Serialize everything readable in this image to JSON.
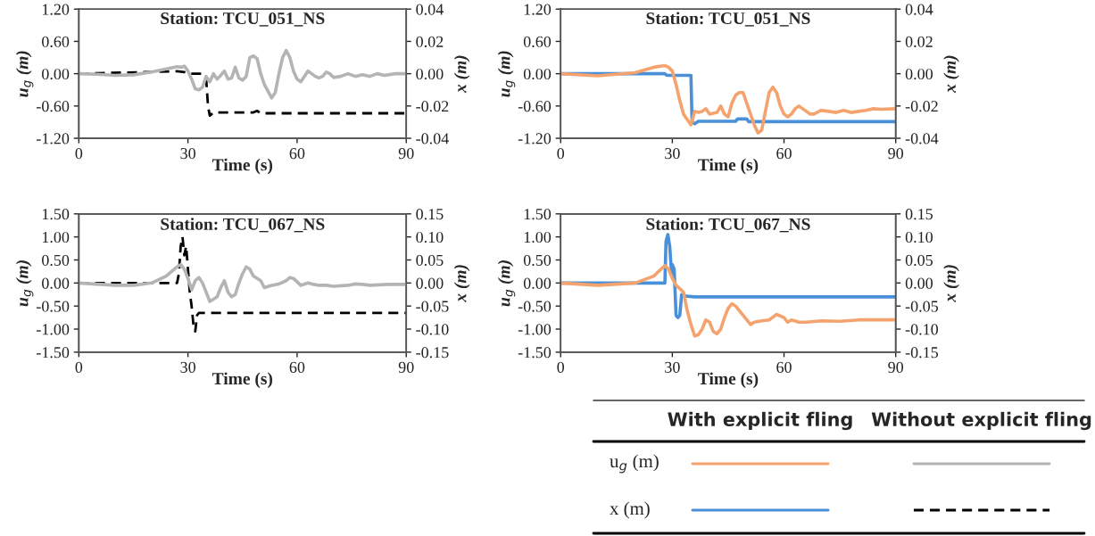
{
  "chart_data": [
    {
      "type": "line",
      "title": "Station: TCU_051_NS",
      "xlabel": "Time (s)",
      "ylabel": "u$_{g}$ (m)",
      "y2label": "x (m)",
      "xlim": [
        0,
        90
      ],
      "xticks": [
        0,
        30,
        60,
        90
      ],
      "ylim": [
        -1.2,
        1.2
      ],
      "yticks": [
        {
          "value": -1.2,
          "label": "-1.20"
        },
        {
          "value": -0.6,
          "label": "-0.60"
        },
        {
          "value": 0,
          "label": "0.00"
        },
        {
          "value": 0.6,
          "label": "0.60"
        },
        {
          "value": 1.2,
          "label": "1.20"
        }
      ],
      "y2lim": [
        -0.04,
        0.04
      ],
      "y2ticks": [
        {
          "value": -0.04,
          "label": "-0.04"
        },
        {
          "value": -0.02,
          "label": "-0.02"
        },
        {
          "value": 0,
          "label": "0.00"
        },
        {
          "value": 0.02,
          "label": "0.02"
        },
        {
          "value": 0.04,
          "label": "0.04"
        }
      ],
      "grid": false,
      "series": [
        {
          "color": "#b4b4b4",
          "line_style": "solid",
          "x": [
            0,
            5,
            10,
            15,
            20,
            25,
            27,
            28,
            29,
            30,
            31,
            32,
            33,
            34,
            35,
            36,
            37,
            38,
            39,
            40,
            41,
            42,
            43,
            44,
            45,
            46,
            47,
            48,
            49,
            50,
            51,
            53,
            54,
            55,
            56,
            57,
            58,
            59,
            60,
            61,
            62,
            63,
            64,
            65,
            66,
            67,
            68,
            69,
            70,
            72,
            74,
            76,
            78,
            80,
            82,
            84,
            87,
            90
          ],
          "values": [
            0,
            -0.01,
            -0.03,
            -0.02,
            0.03,
            0.1,
            0.13,
            0.12,
            0.14,
            0.05,
            -0.1,
            -0.28,
            -0.3,
            -0.25,
            -0.05,
            -0.15,
            0.0,
            -0.1,
            -0.03,
            0.05,
            -0.1,
            -0.08,
            0.12,
            -0.08,
            -0.12,
            -0.05,
            0.3,
            0.33,
            0.28,
            0.0,
            -0.2,
            -0.45,
            -0.35,
            0.0,
            0.3,
            0.43,
            0.3,
            0.05,
            -0.1,
            -0.15,
            -0.05,
            0.05,
            0.0,
            -0.05,
            -0.08,
            -0.05,
            0.03,
            0.0,
            -0.07,
            -0.05,
            0.0,
            -0.05,
            -0.02,
            -0.05,
            0.0,
            -0.03,
            0.0,
            0.0
          ]
        },
        {
          "color": "#000000",
          "line_style": "dashed",
          "axis": "y2",
          "x": [
            0,
            27,
            29,
            30,
            34,
            35,
            35.5,
            36,
            37,
            48,
            49,
            50,
            90
          ],
          "values": [
            0,
            0.0015,
            0.001,
            0,
            0,
            -0.003,
            -0.02,
            -0.026,
            -0.024,
            -0.024,
            -0.023,
            -0.0245,
            -0.0245
          ]
        }
      ]
    },
    {
      "type": "line",
      "title": "Station: TCU_051_NS",
      "xlabel": "Time (s)",
      "ylabel": "u$_{g}$ (m)",
      "y2label": "x (m)",
      "xlim": [
        0,
        90
      ],
      "xticks": [
        0,
        30,
        60,
        90
      ],
      "ylim": [
        -1.2,
        1.2
      ],
      "yticks": [
        {
          "value": -1.2,
          "label": "-1.20"
        },
        {
          "value": -0.6,
          "label": "-0.60"
        },
        {
          "value": 0,
          "label": "0.00"
        },
        {
          "value": 0.6,
          "label": "0.60"
        },
        {
          "value": 1.2,
          "label": "1.20"
        }
      ],
      "y2lim": [
        -0.04,
        0.04
      ],
      "y2ticks": [
        {
          "value": -0.04,
          "label": "-0.04"
        },
        {
          "value": -0.02,
          "label": "-0.02"
        },
        {
          "value": 0,
          "label": "0.00"
        },
        {
          "value": 0.02,
          "label": "0.02"
        },
        {
          "value": 0.04,
          "label": "0.04"
        }
      ],
      "grid": false,
      "series": [
        {
          "color": "#f4a36e",
          "line_style": "solid",
          "x": [
            0,
            10,
            20,
            25,
            28,
            29,
            30,
            31,
            32,
            33,
            34,
            35,
            36,
            37,
            38,
            39,
            40,
            42,
            43,
            44,
            45,
            46,
            47,
            48,
            49,
            50,
            52,
            53,
            54,
            55,
            56,
            57,
            58,
            59,
            60,
            61,
            62,
            63,
            64,
            65,
            66,
            67,
            68,
            70,
            72,
            74,
            76,
            78,
            80,
            82,
            84,
            86,
            90
          ],
          "values": [
            0,
            -0.04,
            0.02,
            0.12,
            0.15,
            0.12,
            0.05,
            -0.2,
            -0.5,
            -0.75,
            -0.85,
            -0.95,
            -0.7,
            -0.72,
            -0.7,
            -0.65,
            -0.75,
            -0.72,
            -0.6,
            -0.75,
            -0.8,
            -0.55,
            -0.4,
            -0.35,
            -0.35,
            -0.55,
            -0.95,
            -1.1,
            -1.05,
            -0.7,
            -0.35,
            -0.25,
            -0.35,
            -0.6,
            -0.75,
            -0.8,
            -0.75,
            -0.65,
            -0.6,
            -0.65,
            -0.7,
            -0.75,
            -0.75,
            -0.68,
            -0.7,
            -0.72,
            -0.68,
            -0.72,
            -0.7,
            -0.68,
            -0.65,
            -0.66,
            -0.65
          ]
        },
        {
          "color": "#4a90d9",
          "line_style": "solid",
          "axis": "y2",
          "x": [
            0,
            28,
            28.5,
            35,
            35.3,
            36,
            37,
            47,
            47.5,
            50,
            50.5,
            90
          ],
          "values": [
            0,
            0,
            -0.001,
            -0.001,
            -0.03,
            -0.031,
            -0.0295,
            -0.0295,
            -0.028,
            -0.028,
            -0.0297,
            -0.0297
          ]
        }
      ]
    },
    {
      "type": "line",
      "title": "Station: TCU_067_NS",
      "xlabel": "Time (s)",
      "ylabel": "u$_{g}$ (m)",
      "y2label": "x (m)",
      "xlim": [
        0,
        90
      ],
      "xticks": [
        0,
        30,
        60,
        90
      ],
      "ylim": [
        -1.5,
        1.5
      ],
      "yticks": [
        {
          "value": -1.5,
          "label": "-1.50"
        },
        {
          "value": -1.0,
          "label": "-1.00"
        },
        {
          "value": -0.5,
          "label": "-0.50"
        },
        {
          "value": 0,
          "label": "0.00"
        },
        {
          "value": 0.5,
          "label": "0.50"
        },
        {
          "value": 1.0,
          "label": "1.00"
        },
        {
          "value": 1.5,
          "label": "1.50"
        }
      ],
      "y2lim": [
        -0.15,
        0.15
      ],
      "y2ticks": [
        {
          "value": -0.15,
          "label": "-0.15"
        },
        {
          "value": -0.1,
          "label": "-0.10"
        },
        {
          "value": -0.05,
          "label": "-0.05"
        },
        {
          "value": 0,
          "label": "0.00"
        },
        {
          "value": 0.05,
          "label": "0.05"
        },
        {
          "value": 0.1,
          "label": "0.10"
        },
        {
          "value": 0.15,
          "label": "0.15"
        }
      ],
      "grid": false,
      "series": [
        {
          "color": "#b4b4b4",
          "line_style": "solid",
          "x": [
            0,
            10,
            15,
            20,
            24,
            27,
            28,
            29,
            30,
            31,
            32,
            33,
            34,
            35,
            36,
            37,
            38,
            39,
            40,
            41,
            42,
            43,
            44,
            45,
            46,
            47,
            48,
            50,
            51,
            53,
            55,
            57,
            58,
            59,
            61,
            63,
            64,
            66,
            68,
            70,
            74,
            76,
            78,
            80,
            85,
            90
          ],
          "values": [
            0,
            -0.05,
            -0.05,
            0.0,
            0.15,
            0.35,
            0.4,
            0.3,
            0.1,
            -0.15,
            0.05,
            0.12,
            0.0,
            -0.2,
            -0.4,
            -0.35,
            -0.3,
            -0.1,
            0.05,
            -0.2,
            -0.3,
            -0.25,
            0.0,
            0.2,
            0.35,
            0.3,
            0.15,
            0.05,
            -0.1,
            -0.05,
            -0.02,
            0.05,
            0.12,
            0.1,
            -0.05,
            0.0,
            -0.02,
            -0.05,
            -0.05,
            -0.07,
            -0.05,
            -0.02,
            -0.03,
            -0.05,
            -0.03,
            -0.03
          ]
        },
        {
          "color": "#000000",
          "line_style": "dashed",
          "axis": "y2",
          "x": [
            0,
            27,
            27.5,
            28,
            28.5,
            29,
            29.5,
            30,
            30.5,
            31,
            31.5,
            32,
            32.5,
            33,
            90
          ],
          "values": [
            0,
            0,
            0.02,
            0.08,
            0.1,
            0.06,
            0.08,
            0.03,
            -0.02,
            -0.05,
            -0.09,
            -0.105,
            -0.07,
            -0.065,
            -0.065
          ]
        }
      ]
    },
    {
      "type": "line",
      "title": "Station: TCU_067_NS",
      "xlabel": "Time (s)",
      "ylabel": "u$_{g}$ (m)",
      "y2label": "x (m)",
      "xlim": [
        0,
        90
      ],
      "xticks": [
        0,
        30,
        60,
        90
      ],
      "ylim": [
        -1.5,
        1.5
      ],
      "yticks": [
        {
          "value": -1.5,
          "label": "-1.50"
        },
        {
          "value": -1.0,
          "label": "-1.00"
        },
        {
          "value": -0.5,
          "label": "-0.50"
        },
        {
          "value": 0,
          "label": "0.00"
        },
        {
          "value": 0.5,
          "label": "0.50"
        },
        {
          "value": 1.0,
          "label": "1.00"
        },
        {
          "value": 1.5,
          "label": "1.50"
        }
      ],
      "y2lim": [
        -0.15,
        0.15
      ],
      "y2ticks": [
        {
          "value": -0.15,
          "label": "-0.15"
        },
        {
          "value": -0.1,
          "label": "-0.10"
        },
        {
          "value": -0.05,
          "label": "-0.05"
        },
        {
          "value": 0,
          "label": "0.00"
        },
        {
          "value": 0.05,
          "label": "0.05"
        },
        {
          "value": 0.1,
          "label": "0.10"
        },
        {
          "value": 0.15,
          "label": "0.15"
        }
      ],
      "grid": false,
      "series": [
        {
          "color": "#f4a36e",
          "line_style": "solid",
          "x": [
            0,
            10,
            20,
            25,
            28,
            29,
            30,
            31,
            32,
            33,
            34,
            35,
            36,
            37,
            38,
            39,
            40,
            41,
            42,
            43,
            44,
            45,
            46,
            47,
            48,
            50,
            51,
            52,
            54,
            56,
            58,
            60,
            61,
            62,
            64,
            66,
            70,
            75,
            80,
            85,
            90
          ],
          "values": [
            0,
            -0.05,
            0.0,
            0.15,
            0.38,
            0.3,
            0.1,
            -0.05,
            -0.12,
            -0.2,
            -0.6,
            -0.9,
            -1.15,
            -1.12,
            -1.0,
            -0.8,
            -0.85,
            -1.05,
            -1.1,
            -1.0,
            -0.75,
            -0.55,
            -0.45,
            -0.5,
            -0.6,
            -0.8,
            -0.9,
            -0.85,
            -0.82,
            -0.8,
            -0.68,
            -0.75,
            -0.85,
            -0.8,
            -0.85,
            -0.85,
            -0.82,
            -0.83,
            -0.8,
            -0.8,
            -0.8
          ]
        },
        {
          "color": "#4a90d9",
          "line_style": "solid",
          "axis": "y2",
          "x": [
            0,
            28,
            28.3,
            28.8,
            29.3,
            29.8,
            30,
            30.5,
            31,
            31.5,
            32,
            32.5,
            33,
            36,
            90
          ],
          "values": [
            0,
            0,
            0.09,
            0.105,
            0.08,
            0.02,
            0.04,
            0.03,
            -0.07,
            -0.075,
            -0.07,
            -0.025,
            -0.028,
            -0.03,
            -0.03
          ]
        }
      ]
    },
    {
      "type": "other",
      "annotations": [
        "With explicit fling",
        "Without explicit fling",
        "u$_{g}$ (m)",
        "x (m)"
      ]
    }
  ]
}
